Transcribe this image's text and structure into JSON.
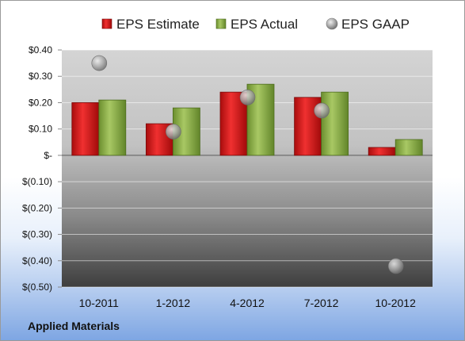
{
  "chart_data": {
    "type": "bar",
    "title": "",
    "xlabel": "",
    "ylabel": "",
    "categories": [
      "10-2011",
      "1-2012",
      "4-2012",
      "7-2012",
      "10-2012"
    ],
    "series": [
      {
        "name": "EPS Estimate",
        "kind": "bar",
        "color": "#d42020",
        "values": [
          0.2,
          0.12,
          0.24,
          0.22,
          0.03
        ]
      },
      {
        "name": "EPS Actual",
        "kind": "bar",
        "color": "#8db048",
        "values": [
          0.21,
          0.18,
          0.27,
          0.24,
          0.06
        ]
      },
      {
        "name": "EPS GAAP",
        "kind": "marker",
        "color": "#a8a8a8",
        "values": [
          0.35,
          0.09,
          0.22,
          0.17,
          -0.42
        ]
      }
    ],
    "ylim": [
      -0.5,
      0.4
    ],
    "yticks": [
      0.4,
      0.3,
      0.2,
      0.1,
      0,
      -0.1,
      -0.2,
      -0.3,
      -0.4,
      -0.5
    ],
    "ytick_labels": [
      "$0.40",
      "$0.30",
      "$0.20",
      "$0.10",
      "$-",
      "$(0.10)",
      "$(0.20)",
      "$(0.30)",
      "$(0.40)",
      "$(0.50)"
    ],
    "legend_position": "top",
    "grid": true
  },
  "footer": {
    "company": "Applied Materials"
  }
}
